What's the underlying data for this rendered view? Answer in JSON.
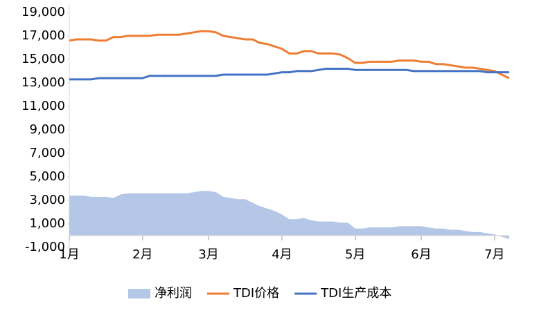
{
  "chart_data": {
    "type": "line",
    "categories": [
      "1月",
      null,
      null,
      null,
      null,
      null,
      null,
      null,
      null,
      null,
      "2月",
      null,
      null,
      null,
      null,
      null,
      null,
      null,
      null,
      "3月",
      null,
      null,
      null,
      null,
      null,
      null,
      null,
      null,
      null,
      "4月",
      null,
      null,
      null,
      null,
      null,
      null,
      null,
      null,
      null,
      "5月",
      null,
      null,
      null,
      null,
      null,
      null,
      null,
      null,
      "6月",
      null,
      null,
      null,
      null,
      null,
      null,
      null,
      null,
      null,
      "7月",
      null,
      null
    ],
    "ylim": [
      -1000,
      19700
    ],
    "yticks": [
      {
        "value": -1000,
        "label": "-1,000"
      },
      {
        "value": 1000,
        "label": "1,000"
      },
      {
        "value": 3000,
        "label": "3,000"
      },
      {
        "value": 5000,
        "label": "5,000"
      },
      {
        "value": 7000,
        "label": "7,000"
      },
      {
        "value": 9000,
        "label": "9,000"
      },
      {
        "value": 11000,
        "label": "11,000"
      },
      {
        "value": 13000,
        "label": "13,000"
      },
      {
        "value": 15000,
        "label": "15,000"
      },
      {
        "value": 17000,
        "label": "17,000"
      },
      {
        "value": 19000,
        "label": "19,000"
      }
    ],
    "grid": false,
    "legend": "bottom",
    "series": [
      {
        "name": "净利润",
        "type": "area",
        "color": "#b4c7e7",
        "values": [
          3400,
          3400,
          3400,
          3300,
          3300,
          3300,
          3200,
          3500,
          3600,
          3600,
          3600,
          3600,
          3600,
          3600,
          3600,
          3600,
          3600,
          3700,
          3800,
          3800,
          3700,
          3300,
          3200,
          3100,
          3100,
          2800,
          2500,
          2300,
          2100,
          1800,
          1400,
          1400,
          1500,
          1300,
          1200,
          1200,
          1200,
          1100,
          1100,
          600,
          600,
          700,
          700,
          700,
          700,
          800,
          800,
          800,
          800,
          700,
          600,
          600,
          500,
          500,
          400,
          300,
          300,
          200,
          100,
          -100,
          -300
        ]
      },
      {
        "name": "TDI价格",
        "type": "line",
        "color": "#ed7d31",
        "values": [
          16600,
          16700,
          16700,
          16700,
          16600,
          16600,
          16900,
          16900,
          17000,
          17000,
          17000,
          17000,
          17100,
          17100,
          17100,
          17100,
          17200,
          17300,
          17400,
          17400,
          17300,
          17000,
          16900,
          16800,
          16700,
          16700,
          16400,
          16300,
          16100,
          15900,
          15500,
          15500,
          15700,
          15700,
          15500,
          15500,
          15500,
          15400,
          15100,
          14700,
          14700,
          14800,
          14800,
          14800,
          14800,
          14900,
          14900,
          14900,
          14800,
          14800,
          14600,
          14600,
          14500,
          14400,
          14300,
          14300,
          14200,
          14100,
          14000,
          13700,
          13400
        ]
      },
      {
        "name": "TDI生产成本",
        "type": "line",
        "color": "#4472c4",
        "values": [
          13300,
          13300,
          13300,
          13300,
          13400,
          13400,
          13400,
          13400,
          13400,
          13400,
          13400,
          13600,
          13600,
          13600,
          13600,
          13600,
          13600,
          13600,
          13600,
          13600,
          13600,
          13700,
          13700,
          13700,
          13700,
          13700,
          13700,
          13700,
          13800,
          13900,
          13900,
          14000,
          14000,
          14000,
          14100,
          14200,
          14200,
          14200,
          14200,
          14100,
          14100,
          14100,
          14100,
          14100,
          14100,
          14100,
          14100,
          14000,
          14000,
          14000,
          14000,
          14000,
          14000,
          14000,
          14000,
          14000,
          14000,
          13900,
          13900,
          13900,
          13900
        ]
      }
    ]
  }
}
